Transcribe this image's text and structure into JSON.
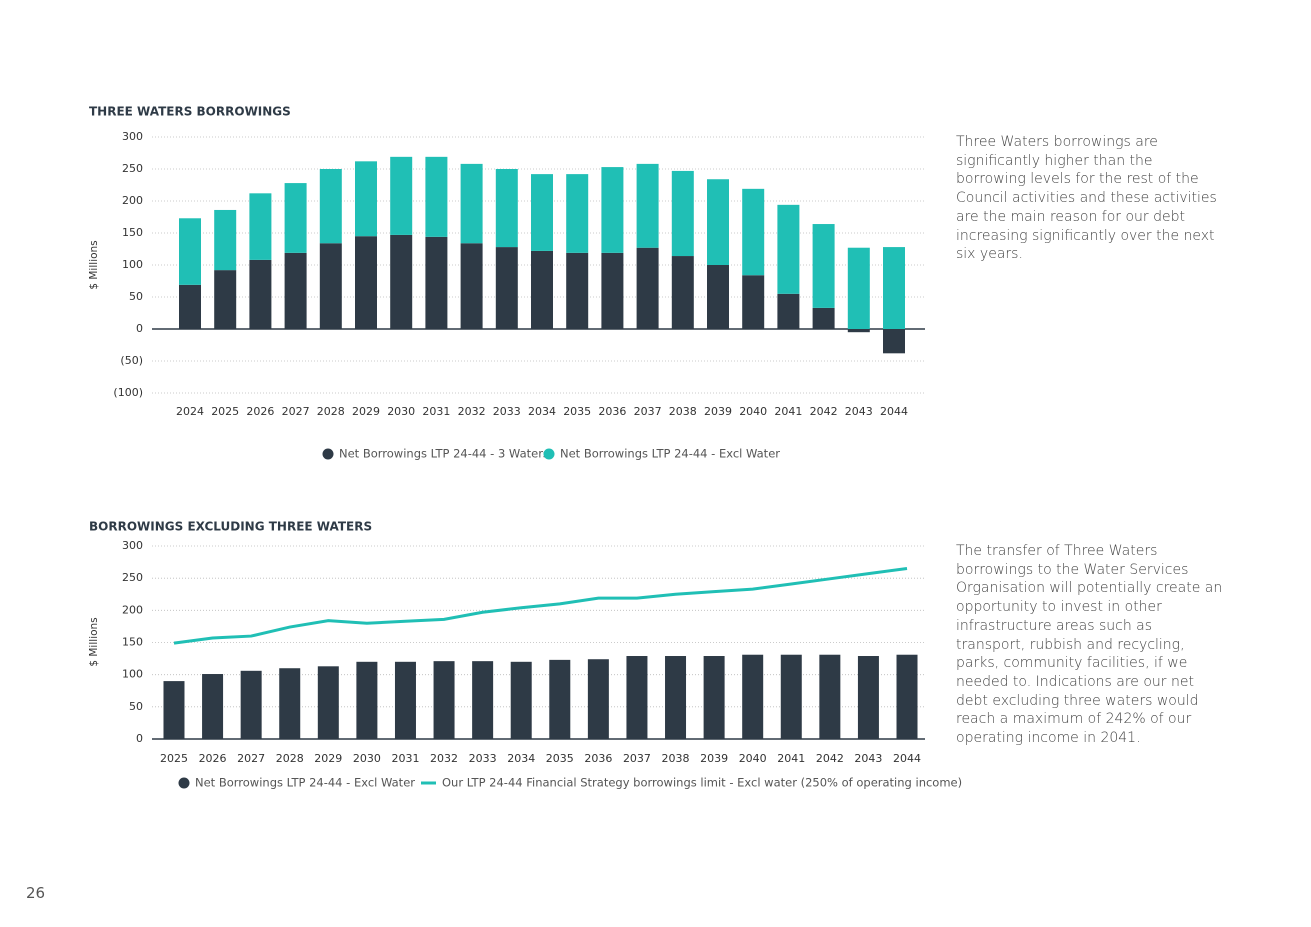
{
  "chart_data": [
    {
      "type": "stacked_bar",
      "title": "THREE WATERS BORROWINGS",
      "y_label": "$ Millions",
      "categories": [
        "2024",
        "2025",
        "2026",
        "2027",
        "2028",
        "2029",
        "2030",
        "2031",
        "2032",
        "2033",
        "2034",
        "2035",
        "2036",
        "2037",
        "2038",
        "2039",
        "2040",
        "2041",
        "2042",
        "2043",
        "2044"
      ],
      "series": [
        {
          "name": "Net Borrowings LTP 24-44 - 3 Waters",
          "color": "#2e3a46",
          "values": [
            69,
            92,
            108,
            119,
            134,
            145,
            147,
            144,
            134,
            128,
            122,
            119,
            119,
            127,
            114,
            100,
            84,
            55,
            33,
            -5,
            -38
          ]
        },
        {
          "name": "Net Borrowings LTP 24-44 - Excl Water",
          "color": "#20bfb5",
          "values": [
            104,
            94,
            104,
            109,
            116,
            117,
            122,
            125,
            124,
            122,
            120,
            123,
            134,
            131,
            133,
            134,
            135,
            139,
            131,
            127,
            128
          ]
        }
      ],
      "ylim": [
        -100,
        300
      ],
      "yticks": [
        {
          "value": -100,
          "label": "(100)"
        },
        {
          "value": -50,
          "label": "(50)"
        },
        0,
        50,
        100,
        150,
        200,
        250,
        300
      ],
      "grid": true
    },
    {
      "type": "combo",
      "title": "BORROWINGS EXCLUDING THREE WATERS",
      "y_label": "$ Millions",
      "categories": [
        "2025",
        "2026",
        "2027",
        "2028",
        "2029",
        "2030",
        "2031",
        "2032",
        "2033",
        "2034",
        "2035",
        "2036",
        "2037",
        "2038",
        "2039",
        "2040",
        "2041",
        "2042",
        "2043",
        "2044"
      ],
      "series": [
        {
          "name": "Net Borrowings LTP 24-44 - Excl Water",
          "type": "bar",
          "color": "#2e3a46",
          "values": [
            90,
            101,
            106,
            110,
            113,
            120,
            120,
            121,
            121,
            120,
            123,
            124,
            129,
            129,
            129,
            131,
            131,
            131,
            129,
            131
          ]
        },
        {
          "name": "Our LTP 24-44 Financial Strategy borrowings limit - Excl water (250% of operating income)",
          "type": "line",
          "color": "#20bfb5",
          "values": [
            149,
            157,
            160,
            174,
            184,
            180,
            183,
            186,
            197,
            204,
            210,
            219,
            219,
            225,
            229,
            233,
            241,
            249,
            257,
            265
          ]
        }
      ],
      "ylim": [
        0,
        300
      ],
      "yticks": [
        0,
        50,
        100,
        150,
        200,
        250,
        300
      ],
      "grid": true
    }
  ],
  "notes": [
    "Three Waters borrowings are significantly higher than the borrowing levels for the rest of the Council activities and these activities are the main reason for our debt increasing significantly over the next six years.",
    "The transfer of Three Waters borrowings to the Water Services Organisation will potentially create an opportunity to invest in other infrastructure areas such as transport, rubbish and recycling, parks, community facilities, if we needed to. Indications are our net debt excluding three waters would reach a maximum of 242% of our operating income in 2041."
  ],
  "page_number": "26"
}
